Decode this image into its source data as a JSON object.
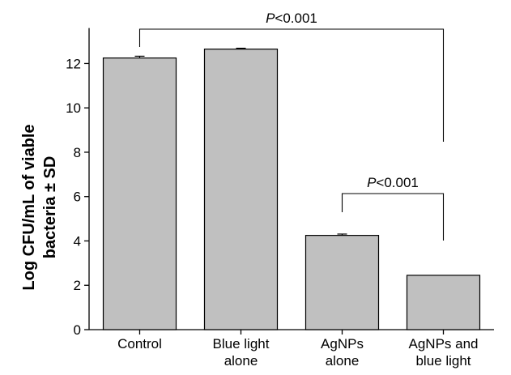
{
  "chart_data": {
    "type": "bar",
    "categories": [
      [
        "Control"
      ],
      [
        "Blue light",
        "alone"
      ],
      [
        "AgNPs",
        "alone"
      ],
      [
        "AgNPs and",
        "blue light"
      ]
    ],
    "values": [
      12.25,
      12.65,
      4.25,
      2.45
    ],
    "errors": [
      0.08,
      0.04,
      0.06,
      0.0
    ],
    "ylabel": [
      "Log CFU/mL of viable",
      "bacteria ± SD"
    ],
    "xlabel": "",
    "ylim": [
      0,
      13.6
    ],
    "yticks": [
      "0",
      "2",
      "4",
      "6",
      "8",
      "10",
      "12"
    ],
    "bar_color": "#c0c0c0",
    "significance": [
      {
        "p_symbol": "P",
        "text": "<0.001",
        "from": 0,
        "to": 3
      },
      {
        "p_symbol": "P",
        "text": "<0.001",
        "from": 2,
        "to": 3
      }
    ]
  }
}
